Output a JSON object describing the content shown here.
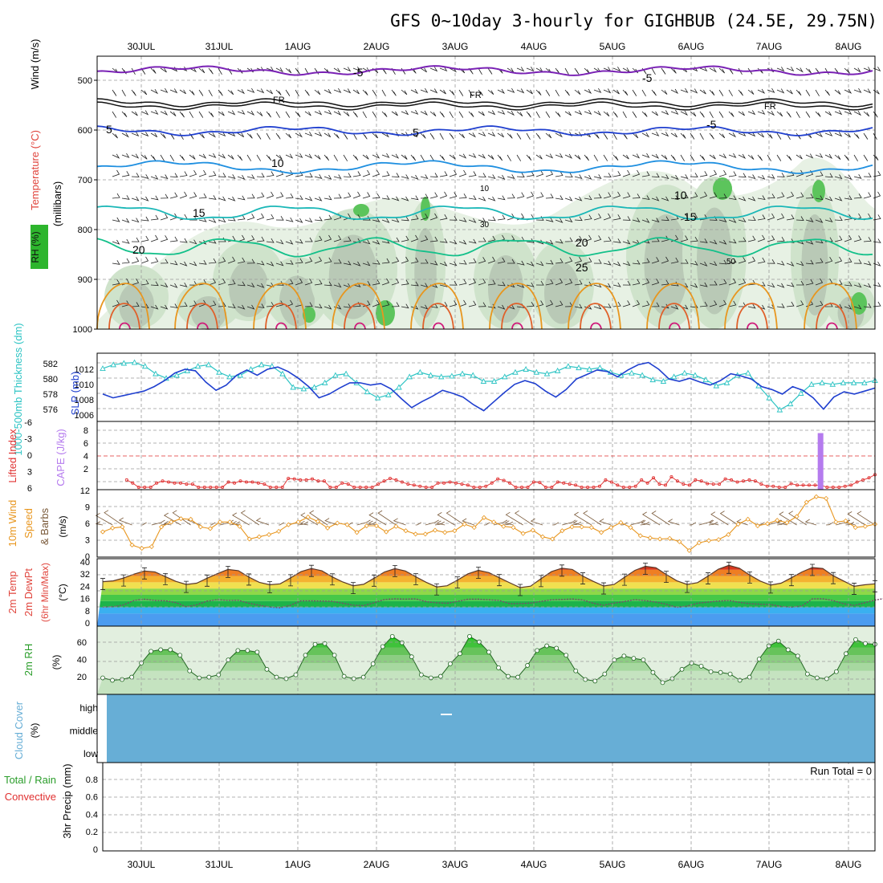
{
  "title": "GFS 0~10day 3-hourly for GIGHBUB (24.5E, 29.75N)",
  "dates": [
    "30JUL",
    "31JUL",
    "1AUG",
    "2AUG",
    "3AUG",
    "4AUG",
    "5AUG",
    "6AUG",
    "7AUG",
    "8AUG"
  ],
  "colors": {
    "temp_label": "#e0443c",
    "rh_label": "#2a9d2a",
    "thick": "#2ec4c4",
    "slp": "#1f3fcf",
    "cape": "#b57bee",
    "li": "#e03030",
    "wind": "#e8961e",
    "cloud": "#67aed6",
    "rain": "#2a9d2a",
    "conv": "#e03030"
  },
  "panels": {
    "upper": {
      "label_wind": "Wind (m/s)",
      "label_temp": "Temperature (°C)",
      "label_rh": "RH (%)",
      "label_mb": "(millibars)",
      "yticks": [
        "500",
        "600",
        "700",
        "800",
        "900",
        "1000"
      ],
      "contour_labels": {
        "m5": "-5",
        "fr": "FR",
        "p5": "5",
        "p10": "10",
        "p15": "15",
        "p20": "20",
        "p25": "25",
        "g10": "10",
        "g30": "30",
        "g50": "50"
      }
    },
    "thick": {
      "label_thick": "1000-500mb Thickness (dm)",
      "label_slp": "SLP (mb)",
      "yticks_left": [
        "582",
        "580",
        "578",
        "576"
      ],
      "yticks_right": [
        "1012",
        "1010",
        "1008",
        "1006"
      ]
    },
    "cape": {
      "label_li": "Lifted Index",
      "label_cape": "CAPE (J/kg)",
      "yticks_left": [
        "-6",
        "-3",
        "0",
        "3",
        "6"
      ],
      "yticks_right": [
        "8",
        "6",
        "4",
        "2"
      ]
    },
    "wind10": {
      "label": "10m Wind",
      "label2": "Speed",
      "label3": "& Barbs",
      "unit": "(m/s)",
      "yticks": [
        "12",
        "9",
        "6",
        "3",
        "0"
      ]
    },
    "temp2m": {
      "label1": "2m Temp",
      "label2": "2m DewPt",
      "label3": "(6hr Min/Max)",
      "unit": "(°C)",
      "yticks": [
        "40",
        "32",
        "24",
        "16",
        "8",
        "0"
      ]
    },
    "rh2m": {
      "label": "2m RH",
      "unit": "(%)",
      "yticks": [
        "60",
        "40",
        "20"
      ]
    },
    "cloud": {
      "label": "Cloud Cover",
      "unit": "(%)",
      "levels": [
        "high",
        "middle",
        "low"
      ]
    },
    "precip": {
      "label_total": "Total / Rain",
      "label_conv": "Convective",
      "label_axis": "3hr Precip (mm)",
      "run_total": "Run Total = 0",
      "yticks": [
        "0.8",
        "0.6",
        "0.4",
        "0.2",
        "0"
      ]
    }
  },
  "chart_data": [
    {
      "type": "line",
      "title": "1000-500mb Thickness (dm)",
      "ylim": [
        575,
        583
      ],
      "series": [
        {
          "name": "1000-500mb Thickness (dm)",
          "values": [
            581.5,
            582.0,
            582.2,
            582.3,
            581.8,
            580.8,
            580.2,
            580.6,
            581.2,
            581.8,
            582.0,
            581.0,
            580.4,
            580.6,
            581.4,
            582.0,
            581.8,
            580.8,
            579.0,
            578.8,
            579.0,
            579.6,
            580.6,
            580.8,
            579.6,
            578.4,
            577.6,
            578.0,
            579.0,
            580.4,
            581.0,
            580.6,
            580.4,
            580.5,
            580.8,
            580.6,
            579.8,
            579.8,
            580.4,
            581.0,
            581.4,
            581.0,
            580.8,
            581.2,
            581.8,
            581.6,
            581.4,
            581.6,
            581.0,
            580.6,
            580.9,
            580.6,
            580.0,
            579.8,
            580.4,
            580.9,
            580.6,
            580.0,
            579.2,
            579.6,
            580.6,
            580.9,
            579.2,
            577.6,
            576.0,
            576.8,
            578.2,
            579.4,
            579.6,
            579.4,
            579.6,
            579.6,
            579.6,
            579.9
          ]
        }
      ]
    },
    {
      "type": "line",
      "title": "SLP (mb)",
      "ylim": [
        1005.5,
        1013.5
      ],
      "series": [
        {
          "name": "SLP (mb)",
          "values": [
            1008.6,
            1008.1,
            1008.4,
            1008.7,
            1009.0,
            1009.6,
            1010.4,
            1011.4,
            1011.9,
            1011.7,
            1010.2,
            1009.1,
            1009.8,
            1011.1,
            1011.8,
            1011.1,
            1011.9,
            1012.2,
            1011.6,
            1010.7,
            1009.6,
            1008.1,
            1008.6,
            1009.4,
            1010.1,
            1010.1,
            1009.8,
            1010.0,
            1009.3,
            1008.0,
            1006.8,
            1007.6,
            1008.3,
            1009.1,
            1008.7,
            1008.2,
            1007.2,
            1006.4,
            1007.6,
            1008.8,
            1009.9,
            1010.4,
            1010.0,
            1009.0,
            1008.2,
            1009.2,
            1010.6,
            1011.2,
            1011.8,
            1011.6,
            1010.9,
            1011.8,
            1012.5,
            1012.8,
            1011.9,
            1010.6,
            1010.3,
            1010.7,
            1010.2,
            1009.8,
            1010.4,
            1011.3,
            1011.0,
            1010.6,
            1009.6,
            1009.2,
            1008.6,
            1009.6,
            1009.1,
            1008.1,
            1006.6,
            1008.2,
            1008.9,
            1008.6,
            1009.0,
            1009.4
          ]
        }
      ]
    },
    {
      "type": "line",
      "title": "Lifted Index",
      "ylim": [
        -6,
        6
      ],
      "series": [
        {
          "name": "Lifted Index",
          "values": [
            null,
            null,
            null,
            null,
            4.6,
            5.2,
            6,
            6,
            6,
            5.2,
            4.8,
            5.0,
            5.2,
            5.2,
            5.4,
            5.4,
            6,
            6,
            6,
            6,
            6,
            5.0,
            5.2,
            4.8,
            5.0,
            5.0,
            5.2,
            5.4,
            6,
            6,
            6,
            4.3,
            4.4,
            4.6,
            4.6,
            4.4,
            4.8,
            4.8,
            6,
            6,
            5.2,
            5.4,
            6,
            6,
            6,
            6,
            5.4,
            4.8,
            4.3,
            4.6,
            5.0,
            5.4,
            5.6,
            5.8,
            6,
            6,
            5.2,
            5.2,
            5.0,
            5.2,
            5.4,
            5.6,
            6,
            6,
            5.8,
            5.2,
            4.4,
            4.7,
            5.2,
            6,
            6,
            6,
            5.0,
            5.1,
            6,
            6,
            5.0,
            5.2,
            5.4,
            5.6,
            6,
            6,
            6,
            5.8,
            4.6,
            5.0,
            5.6,
            6,
            6,
            5.8,
            4.6,
            5.2,
            4.2,
            5.4,
            5.6,
            4.0,
            4.8,
            5.4,
            5.6,
            4.6,
            4.8,
            5.3,
            5.4,
            5.4,
            4.4,
            4.6,
            5.0,
            4.8,
            4.6,
            4.8,
            5.4,
            5.8,
            5.8,
            6,
            6,
            5.3,
            5.6,
            5.6,
            5.6,
            5.6,
            5.6,
            6,
            6,
            6,
            5.8,
            5.6,
            5.0,
            4.6,
            4.2,
            3.6
          ]
        }
      ]
    },
    {
      "type": "bar",
      "title": "CAPE (J/kg)",
      "x": [
        "7AUG 15Z"
      ],
      "values": [
        8
      ],
      "ylim": [
        0,
        9
      ]
    },
    {
      "type": "line",
      "title": "10m Wind Speed (m/s)",
      "ylim": [
        0,
        12
      ],
      "series": [
        {
          "name": "10m Wind Speed",
          "values": [
            4.6,
            5.3,
            5.5,
            2.2,
            1.6,
            1.9,
            5.5,
            6.4,
            7.0,
            6.9,
            5.5,
            5.2,
            6.4,
            6.4,
            5.6,
            3.3,
            3.7,
            4.1,
            4.7,
            5.9,
            6.4,
            7.3,
            6.5,
            5.3,
            6.2,
            5.9,
            4.5,
            5.7,
            5.7,
            4.6,
            5.6,
            4.8,
            4.2,
            4.2,
            4.9,
            4.5,
            4.8,
            6.0,
            5.4,
            7.2,
            6.4,
            5.6,
            5.4,
            4.3,
            4.9,
            3.7,
            3.3,
            4.8,
            5.5,
            5.5,
            5.4,
            4.5,
            5.4,
            6.3,
            5.4,
            3.9,
            3.5,
            3.3,
            3.4,
            2.8,
            1.2,
            2.6,
            3.0,
            3.2,
            4.1,
            6.0,
            6.9,
            5.7,
            6.1,
            6.7,
            6.3,
            7.4,
            10.0,
            11.0,
            10.7,
            6.4,
            6.6,
            5.4,
            5.6,
            6.0
          ]
        }
      ]
    },
    {
      "type": "area",
      "title": "2m Temp / 2m DewPt (°C)",
      "ylim": [
        0,
        41
      ],
      "series": [
        {
          "name": "2m Temp",
          "values": [
            28.4,
            28.9,
            30.7,
            33.2,
            35.2,
            34.6,
            31.6,
            28.6,
            26.6,
            27.4,
            30.6,
            33.5,
            36.2,
            35.4,
            31.3,
            28.0,
            26.4,
            27.0,
            30.8,
            34.8,
            36.8,
            35.3,
            31.4,
            28.2,
            25.8,
            26.7,
            30.6,
            34.6,
            36.7,
            35.2,
            31.5,
            28.0,
            25.0,
            25.8,
            29.4,
            33.4,
            35.6,
            34.2,
            30.9,
            27.7,
            24.6,
            25.5,
            30.3,
            34.8,
            37.0,
            36.2,
            32.0,
            28.6,
            25.6,
            26.6,
            31.2,
            35.6,
            38.2,
            37.3,
            33.0,
            29.0,
            26.6,
            27.8,
            32.0,
            36.4,
            38.8,
            37.0,
            32.6,
            28.8,
            26.2,
            27.4,
            30.9,
            34.6,
            37.4,
            36.8,
            32.2,
            28.8,
            25.4,
            26.4,
            27.0
          ]
        },
        {
          "name": "2m DewPt",
          "values": [
            12.2,
            12.4,
            13.6,
            16.4,
            17.2,
            16.4,
            16.2,
            15.0,
            12.4,
            13.6,
            16.0,
            16.9,
            16.4,
            16.5,
            14.6,
            13.3,
            12.2,
            11.7,
            13.4,
            16.2,
            16.2,
            16.0,
            15.8,
            14.6,
            13.4,
            13.1,
            14.9,
            17.0,
            17.4,
            17.2,
            17.4,
            15.6,
            14.9,
            14.6,
            15.8,
            17.2,
            17.2,
            16.8,
            16.4,
            14.3,
            14.4,
            14.7,
            15.8,
            16.8,
            17.0,
            17.3,
            16.7,
            14.6,
            13.3,
            14.7,
            15.7,
            16.9,
            16.3,
            15.3,
            14.0,
            12.0,
            12.8,
            14.6,
            15.3,
            16.0,
            16.4,
            15.2,
            14.3,
            14.0,
            13.8,
            12.6,
            12.1,
            12.9,
            17.4,
            17.5,
            16.3,
            14.3,
            13.2,
            14.9,
            16.6,
            17.8,
            18.8,
            19.2,
            19.6,
            19.9
          ]
        }
      ]
    },
    {
      "type": "area",
      "title": "2m RH (%)",
      "ylim": [
        0,
        80
      ],
      "series": [
        {
          "name": "2m RH",
          "values": [
            21,
            18,
            19,
            22,
            40,
            55,
            57,
            57,
            50,
            30,
            21,
            22,
            25,
            44,
            56,
            56,
            54,
            32,
            22,
            20,
            25,
            50,
            64,
            65,
            50,
            23,
            20,
            22,
            39,
            61,
            74,
            66,
            48,
            25,
            21,
            23,
            39,
            52,
            74,
            67,
            54,
            34,
            23,
            22,
            37,
            56,
            62,
            59,
            50,
            30,
            19,
            17,
            26,
            44,
            49,
            46,
            44,
            28,
            15,
            20,
            32,
            40,
            36,
            29,
            28,
            26,
            18,
            22,
            45,
            62,
            68,
            57,
            49,
            26,
            21,
            20,
            29,
            52,
            70,
            65,
            64
          ]
        }
      ]
    },
    {
      "type": "table",
      "title": "Cloud Cover (%)",
      "rows": [
        "high",
        "middle",
        "low"
      ],
      "values": [
        [
          100
        ],
        [
          100
        ],
        [
          100
        ]
      ]
    },
    {
      "type": "bar",
      "title": "3hr Precip (mm)",
      "ylim": [
        0,
        1
      ],
      "values": [
        0
      ],
      "annotations": [
        "Run Total = 0"
      ]
    }
  ]
}
